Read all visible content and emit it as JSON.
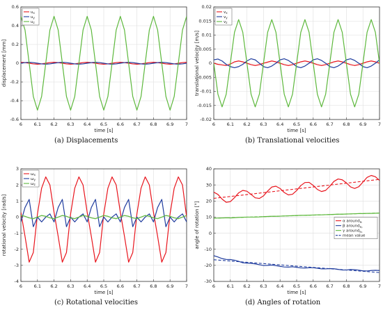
{
  "chart_data": [
    {
      "type": "line",
      "caption": "(a) Displacements",
      "xlabel": "time [s]",
      "ylabel": "displacement [mm]",
      "xlim": [
        6,
        7
      ],
      "ylim": [
        -0.6,
        0.6
      ],
      "xticks": [
        6,
        6.1,
        6.2,
        6.3,
        6.4,
        6.5,
        6.6,
        6.7,
        6.8,
        6.9,
        7
      ],
      "xtick_labels": [
        "6",
        "6.1",
        "6.2",
        "6.3",
        "6.4",
        "6.5",
        "6.6",
        "6.7",
        "6.8",
        "6.9",
        "7"
      ],
      "yticks": [
        -0.6,
        -0.4,
        -0.2,
        0,
        0.2,
        0.4,
        0.6
      ],
      "ytick_labels": [
        "-0.6",
        "-0.4",
        "-0.2",
        "0",
        "0.2",
        "0.4",
        "0.6"
      ],
      "grid": true,
      "legend": "top-left",
      "x": [
        6,
        6.025,
        6.05,
        6.075,
        6.1,
        6.125,
        6.15,
        6.175,
        6.2,
        6.225,
        6.25,
        6.275,
        6.3,
        6.325,
        6.35,
        6.375,
        6.4,
        6.425,
        6.45,
        6.475,
        6.5,
        6.525,
        6.55,
        6.575,
        6.6,
        6.625,
        6.65,
        6.675,
        6.7,
        6.725,
        6.75,
        6.775,
        6.8,
        6.825,
        6.85,
        6.875,
        6.9,
        6.925,
        6.95,
        6.975,
        7
      ],
      "series": [
        {
          "name": "u",
          "subscript": "x",
          "color": "#e8141c",
          "values": [
            0.01,
            0.007,
            0,
            -0.007,
            -0.01,
            -0.007,
            0,
            0.007,
            0.01,
            0.007,
            0,
            -0.007,
            -0.01,
            -0.007,
            0,
            0.007,
            0.01,
            0.007,
            0,
            -0.007,
            -0.01,
            -0.007,
            0,
            0.007,
            0.01,
            0.007,
            0,
            -0.007,
            -0.01,
            -0.007,
            0,
            0.007,
            0.01,
            0.007,
            0,
            -0.007,
            -0.01,
            -0.007,
            0,
            0.007,
            0.01
          ]
        },
        {
          "name": "u",
          "subscript": "y",
          "color": "#1f3c9e",
          "values": [
            0,
            0.007,
            0.01,
            0.007,
            0,
            -0.007,
            -0.01,
            -0.007,
            0,
            0.007,
            0.01,
            0.007,
            0,
            -0.007,
            -0.01,
            -0.007,
            0,
            0.007,
            0.01,
            0.007,
            0,
            -0.007,
            -0.01,
            -0.007,
            0,
            0.007,
            0.01,
            0.007,
            0,
            -0.007,
            -0.01,
            -0.007,
            0,
            0.007,
            0.01,
            0.007,
            0,
            -0.007,
            -0.01,
            -0.007,
            0
          ]
        },
        {
          "name": "u",
          "subscript": "z",
          "color": "#5db83c",
          "values": [
            0.5,
            0.354,
            0,
            -0.354,
            -0.5,
            -0.354,
            0,
            0.354,
            0.5,
            0.354,
            0,
            -0.354,
            -0.5,
            -0.354,
            0,
            0.354,
            0.5,
            0.354,
            0,
            -0.354,
            -0.5,
            -0.354,
            0,
            0.354,
            0.5,
            0.354,
            0,
            -0.354,
            -0.5,
            -0.354,
            0,
            0.354,
            0.5,
            0.354,
            0,
            -0.354,
            -0.5,
            -0.354,
            0,
            0.354,
            0.5
          ]
        }
      ]
    },
    {
      "type": "line",
      "caption": "(b) Translational velocities",
      "xlabel": "time [s]",
      "ylabel": "translational velocity [m/s]",
      "xlim": [
        6,
        7
      ],
      "ylim": [
        -0.02,
        0.02
      ],
      "xticks": [
        6,
        6.1,
        6.2,
        6.3,
        6.4,
        6.5,
        6.6,
        6.7,
        6.8,
        6.9,
        7
      ],
      "xtick_labels": [
        "6",
        "6.1",
        "6.2",
        "6.3",
        "6.4",
        "6.5",
        "6.6",
        "6.7",
        "6.8",
        "6.9",
        "7"
      ],
      "yticks": [
        -0.02,
        -0.015,
        -0.01,
        -0.005,
        0,
        0.005,
        0.01,
        0.015,
        0.02
      ],
      "ytick_labels": [
        "-0.02",
        "-0.015",
        "-0.01",
        "-0.005",
        "0",
        "0.005",
        "0.01",
        "0.015",
        "0.02"
      ],
      "grid": true,
      "legend": "top-left",
      "x": [
        6,
        6.025,
        6.05,
        6.075,
        6.1,
        6.125,
        6.15,
        6.175,
        6.2,
        6.225,
        6.25,
        6.275,
        6.3,
        6.325,
        6.35,
        6.375,
        6.4,
        6.425,
        6.45,
        6.475,
        6.5,
        6.525,
        6.55,
        6.575,
        6.6,
        6.625,
        6.65,
        6.675,
        6.7,
        6.725,
        6.75,
        6.775,
        6.8,
        6.825,
        6.85,
        6.875,
        6.9,
        6.925,
        6.95,
        6.975,
        7
      ],
      "series": [
        {
          "name": "v",
          "subscript": "x",
          "color": "#e8141c",
          "values": [
            0,
            -0.0004,
            -0.0006,
            -0.0008,
            -0.0003,
            0.0005,
            0.0008,
            0.0005,
            0,
            -0.0005,
            -0.0008,
            -0.0005,
            0,
            0.0004,
            0.0008,
            0.0005,
            0,
            -0.0005,
            -0.0008,
            -0.0005,
            0,
            0.0005,
            0.0008,
            0.0005,
            0,
            -0.0005,
            -0.0008,
            -0.0005,
            0,
            0.0005,
            0.0008,
            0.0005,
            0,
            -0.0005,
            -0.0008,
            -0.0005,
            0,
            0.0005,
            0.0008,
            0.0005,
            0
          ]
        },
        {
          "name": "v",
          "subscript": "y",
          "color": "#1f3c9e",
          "values": [
            0.0012,
            0.0015,
            0.0008,
            -0.0004,
            -0.0012,
            -0.0016,
            -0.0012,
            -0.0004,
            0.0008,
            0.0016,
            0.0012,
            0,
            -0.0012,
            -0.0016,
            -0.001,
            0,
            0.0012,
            0.0016,
            0.001,
            0,
            -0.0012,
            -0.0016,
            -0.001,
            0,
            0.0012,
            0.0016,
            0.001,
            0,
            -0.0012,
            -0.0016,
            -0.001,
            0,
            0.0012,
            0.0016,
            0.001,
            0,
            -0.0012,
            -0.0016,
            -0.001,
            0,
            0.0012
          ]
        },
        {
          "name": "v",
          "subscript": "z",
          "color": "#5db83c",
          "values": [
            0,
            -0.011,
            -0.0155,
            -0.011,
            0,
            0.011,
            0.0155,
            0.011,
            0,
            -0.011,
            -0.0155,
            -0.011,
            0,
            0.011,
            0.0155,
            0.011,
            0,
            -0.011,
            -0.0155,
            -0.011,
            0,
            0.011,
            0.0155,
            0.011,
            0,
            -0.011,
            -0.0155,
            -0.011,
            0,
            0.011,
            0.0155,
            0.011,
            0,
            -0.011,
            -0.0155,
            -0.011,
            0,
            0.011,
            0.0155,
            0.011,
            0
          ]
        }
      ]
    },
    {
      "type": "line",
      "caption": "(c) Rotational velocities",
      "xlabel": "time [s]",
      "ylabel": "rotational velocity [rad/s]",
      "xlim": [
        6,
        7
      ],
      "ylim": [
        -4,
        3
      ],
      "xticks": [
        6,
        6.1,
        6.2,
        6.3,
        6.4,
        6.5,
        6.6,
        6.7,
        6.8,
        6.9,
        7
      ],
      "xtick_labels": [
        "6",
        "6.1",
        "6.2",
        "6.3",
        "6.4",
        "6.5",
        "6.6",
        "6.7",
        "6.8",
        "6.9",
        "7"
      ],
      "yticks": [
        -4,
        -3,
        -2,
        -1,
        0,
        1,
        2,
        3
      ],
      "ytick_labels": [
        "-4",
        "-3",
        "-2",
        "-1",
        "0",
        "1",
        "2",
        "3"
      ],
      "grid": true,
      "legend": "top-left",
      "x": [
        6,
        6.025,
        6.05,
        6.075,
        6.1,
        6.125,
        6.15,
        6.175,
        6.2,
        6.225,
        6.25,
        6.275,
        6.3,
        6.325,
        6.35,
        6.375,
        6.4,
        6.425,
        6.45,
        6.475,
        6.5,
        6.525,
        6.55,
        6.575,
        6.6,
        6.625,
        6.65,
        6.675,
        6.7,
        6.725,
        6.75,
        6.775,
        6.8,
        6.825,
        6.85,
        6.875,
        6.9,
        6.925,
        6.95,
        6.975,
        7
      ],
      "series": [
        {
          "name": "ω",
          "subscript": "x",
          "color": "#e8141c",
          "values": [
            0.3,
            -1.2,
            -2.8,
            -2.2,
            0.2,
            1.8,
            2.5,
            2,
            0.3,
            -1.2,
            -2.8,
            -2.2,
            0.2,
            1.8,
            2.5,
            2,
            0.3,
            -1.2,
            -2.8,
            -2.2,
            0.2,
            1.8,
            2.5,
            2,
            0.3,
            -1.2,
            -2.8,
            -2.2,
            0.2,
            1.8,
            2.5,
            2,
            0.3,
            -1.2,
            -2.8,
            -2.2,
            0.2,
            1.8,
            2.5,
            2,
            0
          ]
        },
        {
          "name": "ω",
          "subscript": "y",
          "color": "#1f3c9e",
          "values": [
            -0.3,
            0.6,
            1.1,
            -0.6,
            0,
            -0.3,
            0,
            0.2,
            -0.3,
            0.6,
            1.1,
            -0.6,
            0,
            -0.3,
            0,
            0.2,
            -0.3,
            0.6,
            1.1,
            -0.6,
            0,
            -0.3,
            0,
            0.2,
            -0.3,
            0.6,
            1.1,
            -0.6,
            0,
            -0.3,
            0,
            0.2,
            -0.3,
            0.6,
            1.1,
            -0.6,
            0,
            -0.3,
            0,
            0.2,
            -0.3
          ]
        },
        {
          "name": "ω",
          "subscript": "z",
          "color": "#5db83c",
          "values": [
            0.1,
            0.05,
            -0.05,
            -0.1,
            0,
            0.1,
            0.05,
            -0.05,
            -0.1,
            0,
            0.1,
            0.05,
            -0.05,
            -0.1,
            0,
            0.1,
            0.05,
            -0.05,
            -0.1,
            0,
            0.1,
            0.05,
            -0.05,
            -0.1,
            0,
            0.1,
            0.05,
            -0.05,
            -0.1,
            0,
            0.1,
            0.05,
            -0.05,
            -0.1,
            0,
            0.1,
            0.05,
            -0.05,
            -0.1,
            0,
            0.1
          ]
        }
      ]
    },
    {
      "type": "line",
      "caption": "(d) Angles of rotation",
      "xlabel": "time [s]",
      "ylabel": "angle of rotation [°]",
      "xlim": [
        6,
        7
      ],
      "ylim": [
        -30,
        40
      ],
      "xticks": [
        6,
        6.1,
        6.2,
        6.3,
        6.4,
        6.5,
        6.6,
        6.7,
        6.8,
        6.9,
        7
      ],
      "xtick_labels": [
        "6",
        "6.1",
        "6.2",
        "6.3",
        "6.4",
        "6.5",
        "6.6",
        "6.7",
        "6.8",
        "6.9",
        "7"
      ],
      "yticks": [
        -30,
        -20,
        -10,
        0,
        10,
        20,
        30,
        40
      ],
      "ytick_labels": [
        "-30",
        "-20",
        "-10",
        "0",
        "10",
        "20",
        "30",
        "40"
      ],
      "grid": true,
      "legend": "right",
      "x": [
        6,
        6.025,
        6.05,
        6.075,
        6.1,
        6.125,
        6.15,
        6.175,
        6.2,
        6.225,
        6.25,
        6.275,
        6.3,
        6.325,
        6.35,
        6.375,
        6.4,
        6.425,
        6.45,
        6.475,
        6.5,
        6.525,
        6.55,
        6.575,
        6.6,
        6.625,
        6.65,
        6.675,
        6.7,
        6.725,
        6.75,
        6.775,
        6.8,
        6.825,
        6.85,
        6.875,
        6.9,
        6.925,
        6.95,
        6.975,
        7
      ],
      "series": [
        {
          "name": "α around",
          "subscript": "eᵢ",
          "color": "#e8141c",
          "dash": false,
          "values": [
            25.5,
            24.1,
            21.2,
            19.2,
            19.6,
            22.1,
            25.1,
            26.6,
            26.1,
            24.1,
            22,
            21.6,
            23.2,
            26.2,
            28.7,
            29.2,
            27.8,
            25.3,
            23.8,
            24.2,
            26.5,
            29.6,
            31.5,
            31.6,
            29.7,
            27.2,
            25.9,
            26.6,
            29.2,
            32.2,
            33.7,
            33.2,
            31.3,
            28.8,
            27.8,
            28.9,
            31.8,
            34.7,
            35.9,
            35.1,
            32.8
          ]
        },
        {
          "name": "β around",
          "subscript": "eᵧ",
          "color": "#1f3c9e",
          "dash": false,
          "values": [
            -14,
            -14.8,
            -15.8,
            -16.3,
            -16.4,
            -16.8,
            -17.5,
            -18.4,
            -18.6,
            -18.7,
            -19.1,
            -19.6,
            -20.1,
            -20,
            -19.8,
            -20.2,
            -20.6,
            -21,
            -21.1,
            -20.9,
            -21.2,
            -21.6,
            -21.7,
            -21.5,
            -21.5,
            -21.8,
            -22.2,
            -22.2,
            -22,
            -22.1,
            -22.5,
            -22.9,
            -22.9,
            -22.6,
            -22.7,
            -23,
            -23.4,
            -23.5,
            -23.2,
            -23.1,
            -23.2
          ]
        },
        {
          "name": "γ around",
          "subscript": "eₓ",
          "color": "#5db83c",
          "dash": false,
          "values": [
            9.3,
            9.4,
            9.5,
            9.6,
            9.5,
            9.6,
            9.8,
            9.9,
            10,
            10,
            10,
            10.1,
            10.3,
            10.4,
            10.5,
            10.5,
            10.6,
            10.7,
            10.8,
            10.9,
            11,
            11.1,
            11.1,
            11.2,
            11.3,
            11.4,
            11.4,
            11.5,
            11.6,
            11.7,
            11.8,
            11.8,
            11.9,
            12,
            12.1,
            12.2,
            12.2,
            12.3,
            12.3,
            12.4,
            12.5
          ]
        },
        {
          "name": "mean value",
          "subscript": "",
          "color": "#1f3c9e",
          "dash": true,
          "mean_of": [
            0,
            1,
            2
          ]
        }
      ]
    }
  ]
}
